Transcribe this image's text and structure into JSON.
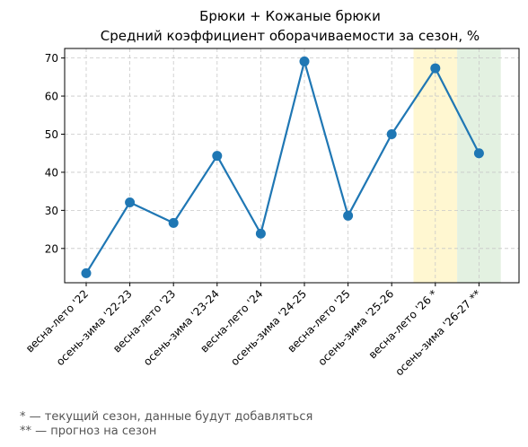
{
  "chart_data": {
    "type": "line",
    "title": [
      "Брюки + Кожаные брюки",
      "Средний коэффициент оборачиваемости за сезон, %"
    ],
    "xlabel": "",
    "ylabel": "",
    "categories": [
      "весна-лето '22",
      "осень-зима '22-23",
      "весна-лето '23",
      "осень-зима '23-24",
      "весна-лето '24",
      "осень-зима '24-25",
      "весна-лето '25",
      "осень-зима '25-26",
      "весна-лето '26 *",
      "осень-зима '26-27 **"
    ],
    "series": [
      {
        "values": [
          13.5,
          32.1,
          26.7,
          44.3,
          23.9,
          69.1,
          28.6,
          50.0,
          67.3,
          45.0
        ]
      }
    ],
    "ylim": [
      11,
      72.5
    ],
    "yticks": [
      20,
      30,
      40,
      50,
      60,
      70
    ],
    "grid": true,
    "line_color": "#1f77b4",
    "highlights": [
      {
        "category": "весна-лето '26 *",
        "color": "#fff7d1"
      },
      {
        "category": "осень-зима '26-27 **",
        "color": "#e3f1e1"
      }
    ]
  },
  "footnotes": [
    "* — текущий сезон, данные будут добавляться",
    "** — прогноз на сезон"
  ]
}
